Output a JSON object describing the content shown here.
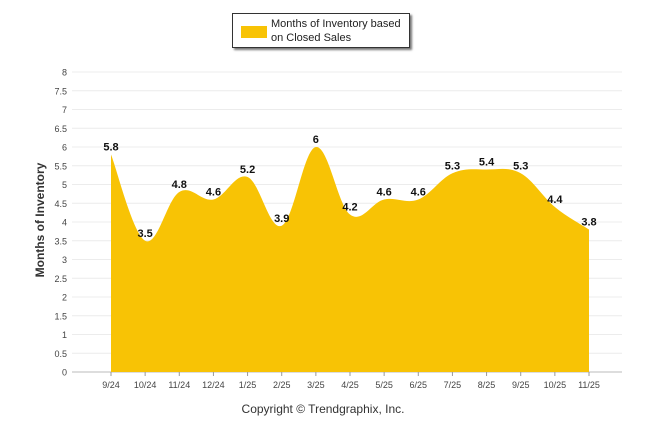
{
  "chart_data": {
    "type": "area",
    "title": "",
    "legend": {
      "label": "Months of Inventory based on Closed Sales",
      "position": "top-center"
    },
    "xlabel": "",
    "ylabel": "Months of Inventory",
    "categories": [
      "9/24",
      "10/24",
      "11/24",
      "12/24",
      "1/25",
      "2/25",
      "3/25",
      "4/25",
      "5/25",
      "6/25",
      "7/25",
      "8/25",
      "9/25",
      "10/25",
      "11/25"
    ],
    "series": [
      {
        "name": "Months of Inventory based on Closed Sales",
        "values": [
          5.8,
          3.5,
          4.8,
          4.6,
          5.2,
          3.9,
          6,
          4.2,
          4.6,
          4.6,
          5.3,
          5.4,
          5.3,
          4.4,
          3.8
        ],
        "color": "#f8c305"
      }
    ],
    "data_labels": [
      "5.8",
      "3.5",
      "4.8",
      "4.6",
      "5.2",
      "3.9",
      "6",
      "4.2",
      "4.6",
      "4.6",
      "5.3",
      "5.4",
      "5.3",
      "4.4",
      "3.8"
    ],
    "ylim": [
      0,
      8
    ],
    "yticks": [
      "0",
      "0.5",
      "1",
      "1.5",
      "2",
      "2.5",
      "3",
      "3.5",
      "4",
      "4.5",
      "5",
      "5.5",
      "6",
      "6.5",
      "7",
      "7.5",
      "8"
    ],
    "grid": true
  },
  "footer": {
    "copyright": "Copyright © Trendgraphix, Inc."
  }
}
